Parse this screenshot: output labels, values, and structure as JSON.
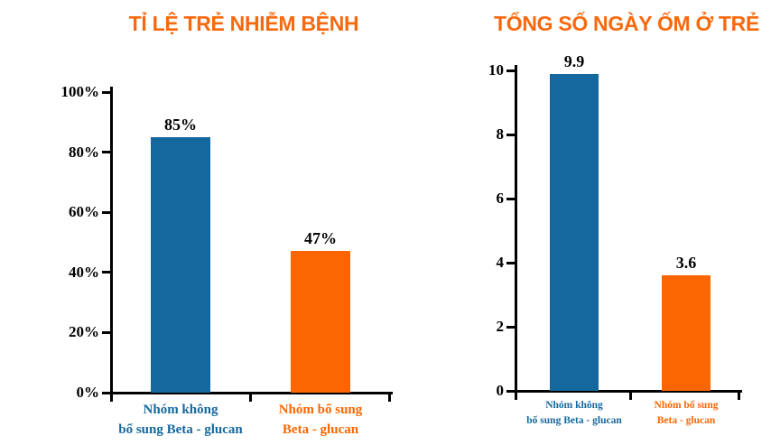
{
  "colors": {
    "title_orange": "#F7690E",
    "bar_blue": "#15689D",
    "bar_orange": "#FB6602",
    "axis_black": "#000000",
    "value_label_black": "#000000",
    "background": "#FFFFFF"
  },
  "chart_data": [
    {
      "type": "bar",
      "title": "TỈ LỆ TRẺ NHIỄM BỆNH",
      "categories": [
        "Nhóm không bổ sung Beta - glucan",
        "Nhóm bổ sung Beta - glucan"
      ],
      "category_lines": [
        [
          "Nhóm không",
          "bổ sung Beta - glucan"
        ],
        [
          "Nhóm bổ sung",
          "Beta - glucan"
        ]
      ],
      "values": [
        85,
        47
      ],
      "value_labels": [
        "85%",
        "47%"
      ],
      "bar_colors": [
        "#15689D",
        "#FB6602"
      ],
      "category_colors": [
        "#15689D",
        "#FB6602"
      ],
      "xlabel": "",
      "ylabel": "",
      "ylim": [
        0,
        100
      ],
      "yticks": [
        0,
        20,
        40,
        60,
        80,
        100
      ],
      "ytick_labels": [
        "0%",
        "20%",
        "40%",
        "60%",
        "80%",
        "100%"
      ],
      "grid": false,
      "legend": false
    },
    {
      "type": "bar",
      "title": "TỔNG SỐ NGÀY ỐM Ở TRẺ",
      "categories": [
        "Nhóm không bổ sung Beta - glucan",
        "Nhóm bổ sung Beta - glucan"
      ],
      "category_lines": [
        [
          "Nhóm không",
          "bổ sung Beta - glucan"
        ],
        [
          "Nhóm bổ sung",
          "Beta - glucan"
        ]
      ],
      "values": [
        9.9,
        3.6
      ],
      "value_labels": [
        "9.9",
        "3.6"
      ],
      "bar_colors": [
        "#15689D",
        "#FB6602"
      ],
      "category_colors": [
        "#15689D",
        "#FB6602"
      ],
      "xlabel": "",
      "ylabel": "",
      "ylim": [
        0,
        10
      ],
      "yticks": [
        0,
        2,
        4,
        6,
        8,
        10
      ],
      "ytick_labels": [
        "0",
        "2",
        "4",
        "6",
        "8",
        "10"
      ],
      "grid": false,
      "legend": false
    }
  ]
}
